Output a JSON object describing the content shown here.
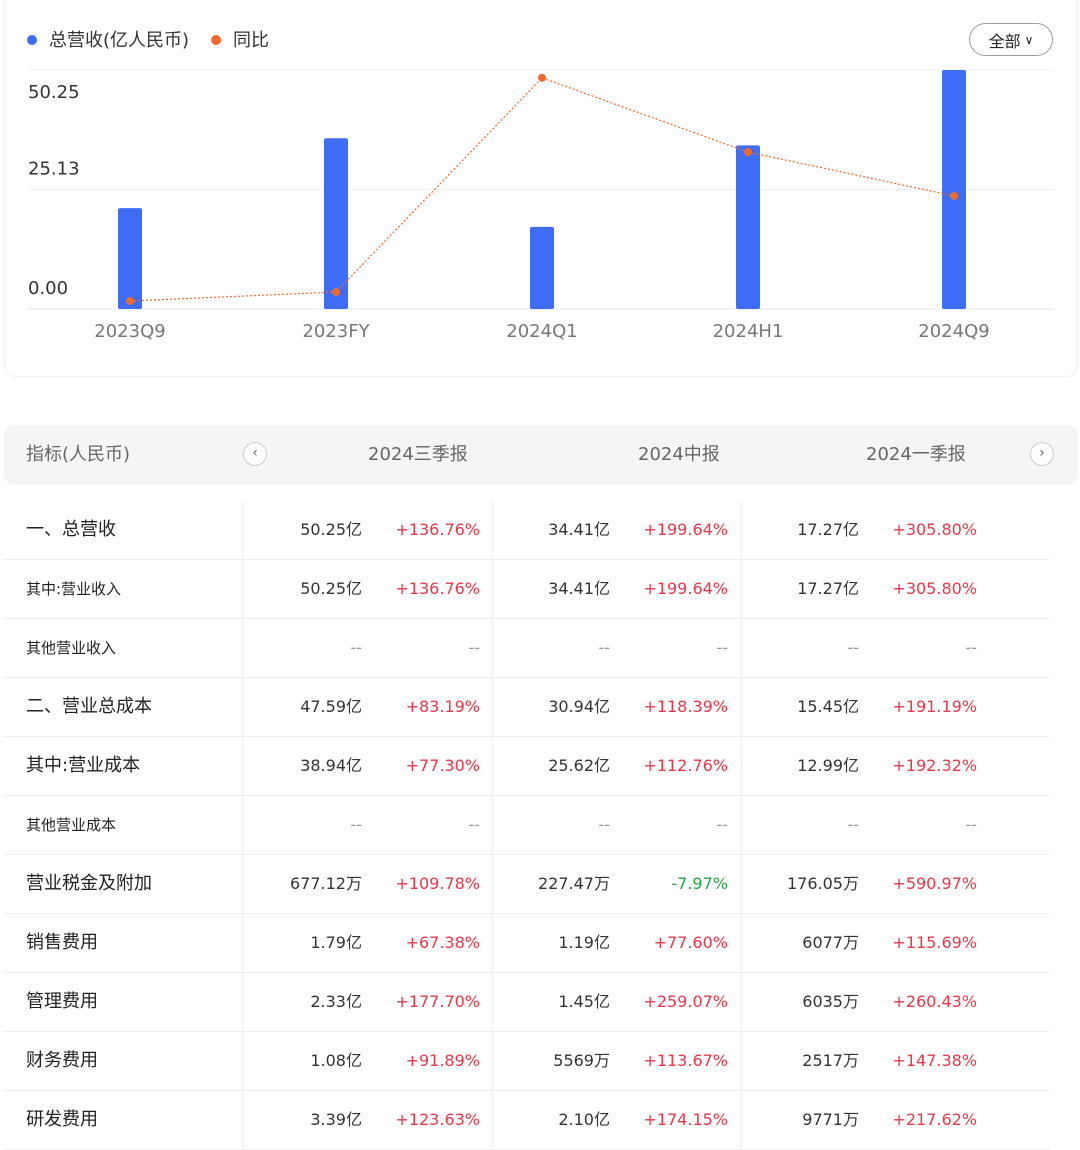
{
  "chart_data": {
    "type": "bar",
    "categories": [
      "2023Q9",
      "2023FY",
      "2024Q1",
      "2024H1",
      "2024Q9"
    ],
    "series": [
      {
        "name": "总营收(亿人民币)",
        "type": "bar",
        "color": "#3f6cf5",
        "values": [
          21.2,
          35.9,
          17.27,
          34.41,
          50.25
        ]
      },
      {
        "name": "同比",
        "type": "line",
        "color": "#f0692a",
        "axis": "y2",
        "values": [
          -13.6,
          -0.7,
          305.8,
          199.64,
          136.76
        ]
      }
    ],
    "ylim": [
      0,
      50.25
    ],
    "yticks": [
      {
        "value": 0,
        "label": "0.00"
      },
      {
        "value": 25.13,
        "label": "25.13"
      },
      {
        "value": 50.25,
        "label": "50.25"
      }
    ],
    "y2lim": [
      -25,
      317
    ],
    "grid": true
  },
  "filter_button": "全部",
  "table": {
    "header": [
      "指标(人民币)",
      "2024三季报",
      "2024中报",
      "2024一季报"
    ],
    "rows": [
      [
        "一、总营收",
        "50.25亿",
        "+136.76%",
        "34.41亿",
        "+199.64%",
        "17.27亿",
        "+305.80%"
      ],
      [
        "其中:营业收入",
        "50.25亿",
        "+136.76%",
        "34.41亿",
        "+199.64%",
        "17.27亿",
        "+305.80%"
      ],
      [
        "其他营业收入",
        "--",
        "--",
        "--",
        "--",
        "--",
        "--"
      ],
      [
        "二、营业总成本",
        "47.59亿",
        "+83.19%",
        "30.94亿",
        "+118.39%",
        "15.45亿",
        "+191.19%"
      ],
      [
        "其中:营业成本",
        "38.94亿",
        "+77.30%",
        "25.62亿",
        "+112.76%",
        "12.99亿",
        "+192.32%"
      ],
      [
        "其他营业成本",
        "--",
        "--",
        "--",
        "--",
        "--",
        "--"
      ],
      [
        "营业税金及附加",
        "677.12万",
        "+109.78%",
        "227.47万",
        "-7.97%",
        "176.05万",
        "+590.97%"
      ],
      [
        "销售费用",
        "1.79亿",
        "+67.38%",
        "1.19亿",
        "+77.60%",
        "6077万",
        "+115.69%"
      ],
      [
        "管理费用",
        "2.33亿",
        "+177.70%",
        "1.45亿",
        "+259.07%",
        "6035万",
        "+260.43%"
      ],
      [
        "财务费用",
        "1.08亿",
        "+91.89%",
        "5569万",
        "+113.67%",
        "2517万",
        "+147.38%"
      ],
      [
        "研发费用",
        "3.39亿",
        "+123.63%",
        "2.10亿",
        "+174.15%",
        "9771万",
        "+217.62%"
      ]
    ]
  }
}
